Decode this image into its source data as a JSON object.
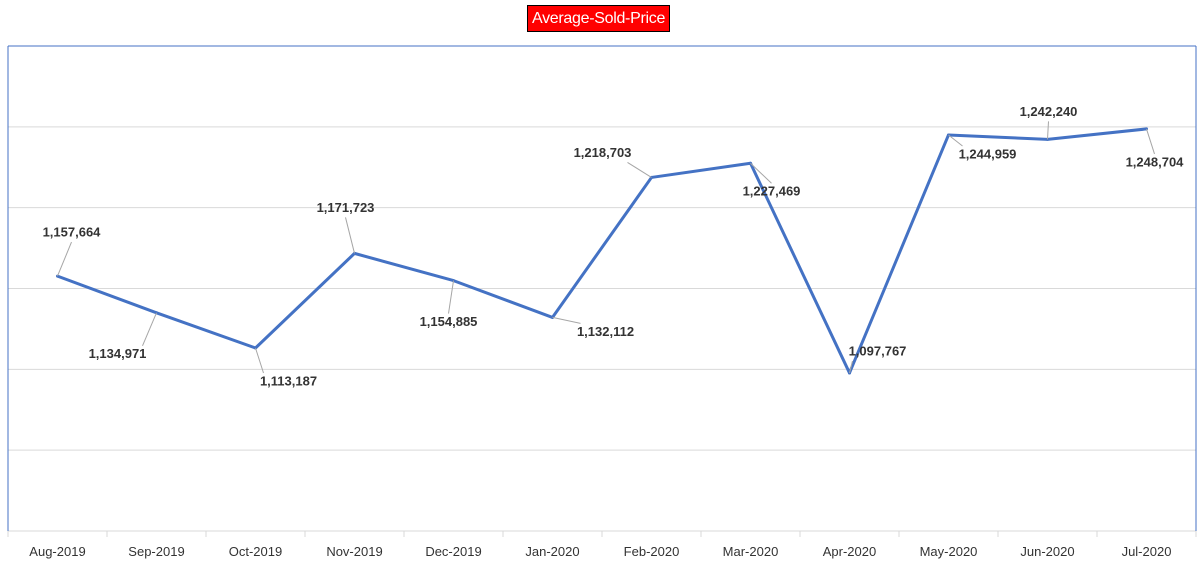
{
  "chart_data": {
    "type": "line",
    "title": "Average-Sold-Price",
    "categories": [
      "Aug-2019",
      "Sep-2019",
      "Oct-2019",
      "Nov-2019",
      "Dec-2019",
      "Jan-2020",
      "Feb-2020",
      "Mar-2020",
      "Apr-2020",
      "May-2020",
      "Jun-2020",
      "Jul-2020"
    ],
    "series": [
      {
        "name": "Average-Sold-Price",
        "values": [
          1157664,
          1134971,
          1113187,
          1171723,
          1154885,
          1132112,
          1218703,
          1227469,
          1097767,
          1244959,
          1242240,
          1248704
        ]
      }
    ],
    "data_labels": [
      "1,157,664",
      "1,134,971",
      "1,113,187",
      "1,171,723",
      "1,154,885",
      "1,132,112",
      "1,218,703",
      "1,227,469",
      "1,097,767",
      "1,244,959",
      "1,242,240",
      "1,248,704"
    ],
    "ylim": [
      1000000,
      1300000
    ],
    "y_grid_step": 50000,
    "grid": true,
    "line_color": "#4472c4",
    "title_bg": "#ff0000"
  }
}
